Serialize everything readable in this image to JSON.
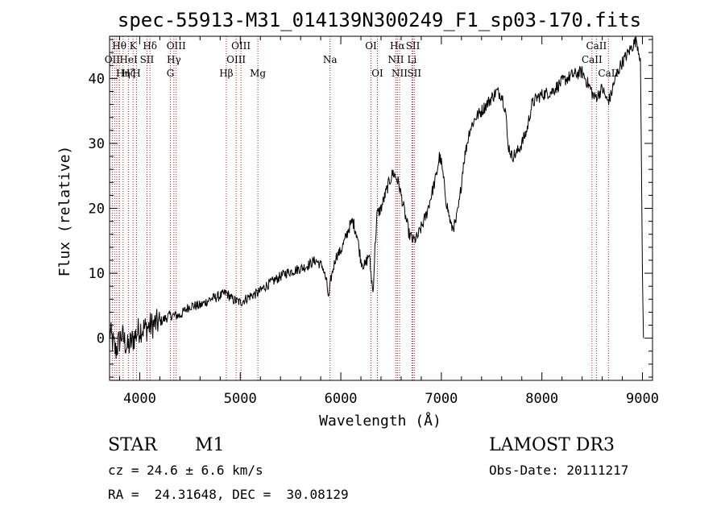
{
  "chart_data": {
    "type": "line",
    "title": "spec-55913-M31_014139N300249_F1_sp03-170.fits",
    "xlabel": "Wavelength (Å)",
    "ylabel": "Flux (relative)",
    "xlim": [
      3700,
      9100
    ],
    "ylim": [
      -6.5,
      46.5
    ],
    "x_ticks": [
      4000,
      5000,
      6000,
      7000,
      8000,
      9000
    ],
    "y_ticks": [
      0,
      10,
      20,
      30,
      40
    ],
    "series": [
      {
        "name": "flux",
        "x": [
          3700,
          3760,
          3820,
          3880,
          3940,
          4000,
          4060,
          4120,
          4200,
          4300,
          4400,
          4500,
          4600,
          4700,
          4800,
          4860,
          4920,
          5000,
          5100,
          5180,
          5250,
          5350,
          5450,
          5550,
          5650,
          5750,
          5820,
          5860,
          5880,
          5900,
          5950,
          6000,
          6040,
          6080,
          6120,
          6160,
          6200,
          6240,
          6280,
          6300,
          6320,
          6340,
          6360,
          6400,
          6440,
          6480,
          6520,
          6560,
          6580,
          6600,
          6640,
          6680,
          6720,
          6760,
          6800,
          6850,
          6900,
          6950,
          6980,
          7000,
          7050,
          7100,
          7140,
          7180,
          7220,
          7280,
          7340,
          7400,
          7450,
          7500,
          7550,
          7600,
          7640,
          7660,
          7700,
          7750,
          7800,
          7850,
          7900,
          7950,
          8000,
          8100,
          8200,
          8300,
          8400,
          8480,
          8520,
          8560,
          8600,
          8650,
          8680,
          8720,
          8780,
          8840,
          8900,
          8940,
          8980,
          9000,
          9010
        ],
        "values": [
          1.0,
          -2.0,
          0.5,
          -1.5,
          0.0,
          1.5,
          1.5,
          2.0,
          2.5,
          3.5,
          3.5,
          5.0,
          5.0,
          6.0,
          6.5,
          7.0,
          6.0,
          5.5,
          6.5,
          7.0,
          8.0,
          9.0,
          10.0,
          10.5,
          11.0,
          12.0,
          11.0,
          8.5,
          6.0,
          9.0,
          12.5,
          13.5,
          15.0,
          17.0,
          18.0,
          16.0,
          12.0,
          11.0,
          13.0,
          10.0,
          7.0,
          14.0,
          19.0,
          20.0,
          22.0,
          24.0,
          25.5,
          24.5,
          23.5,
          22.0,
          19.0,
          16.0,
          15.0,
          15.5,
          17.0,
          19.0,
          22.0,
          25.0,
          28.0,
          27.0,
          21.0,
          17.0,
          17.5,
          21.0,
          27.0,
          32.0,
          34.0,
          35.0,
          36.0,
          37.0,
          38.0,
          37.5,
          35.0,
          30.0,
          28.0,
          28.5,
          30.0,
          32.0,
          36.0,
          37.0,
          37.5,
          38.0,
          39.5,
          40.5,
          41.0,
          38.5,
          37.0,
          37.5,
          38.5,
          36.5,
          37.0,
          39.5,
          42.0,
          43.5,
          45.0,
          46.0,
          43.0,
          10.0,
          0.0
        ]
      }
    ],
    "line_markers": [
      {
        "label": "Hθ",
        "wavelength": 3797,
        "row": 0
      },
      {
        "label": "OII",
        "wavelength": 3727,
        "row": 1
      },
      {
        "label": "Hη",
        "wavelength": 3835,
        "row": 2
      },
      {
        "label": "K",
        "wavelength": 3934,
        "row": 0
      },
      {
        "label": "HeI",
        "wavelength": 3889,
        "row": 1
      },
      {
        "label": "Hζ",
        "wavelength": 3889,
        "row": 2
      },
      {
        "label": "SII",
        "wavelength": 4072,
        "row": 1
      },
      {
        "label": "H",
        "wavelength": 3968,
        "row": 2
      },
      {
        "label": "Hδ",
        "wavelength": 4102,
        "row": 0
      },
      {
        "label": "OIII",
        "wavelength": 4363,
        "row": 0
      },
      {
        "label": "Hγ",
        "wavelength": 4340,
        "row": 1
      },
      {
        "label": "G",
        "wavelength": 4305,
        "row": 2
      },
      {
        "label": "Hβ",
        "wavelength": 4861,
        "row": 2
      },
      {
        "label": "OIII",
        "wavelength": 5007,
        "row": 0
      },
      {
        "label": "OIII",
        "wavelength": 4959,
        "row": 1
      },
      {
        "label": "Mg",
        "wavelength": 5175,
        "row": 2
      },
      {
        "label": "Na",
        "wavelength": 5893,
        "row": 1
      },
      {
        "label": "OI",
        "wavelength": 6300,
        "row": 0
      },
      {
        "label": "OI",
        "wavelength": 6364,
        "row": 2
      },
      {
        "label": "Hα",
        "wavelength": 6563,
        "row": 0
      },
      {
        "label": "NII",
        "wavelength": 6548,
        "row": 1
      },
      {
        "label": "NII",
        "wavelength": 6584,
        "row": 2
      },
      {
        "label": "SII",
        "wavelength": 6717,
        "row": 0
      },
      {
        "label": "Li",
        "wavelength": 6708,
        "row": 1
      },
      {
        "label": "SII",
        "wavelength": 6731,
        "row": 2
      },
      {
        "label": "CaII",
        "wavelength": 8542,
        "row": 0
      },
      {
        "label": "CaII",
        "wavelength": 8498,
        "row": 1
      },
      {
        "label": "CaII",
        "wavelength": 8662,
        "row": 2
      }
    ],
    "extra_marker_lines": [
      3750,
      3771,
      3798,
      3835,
      3889,
      3934,
      3968,
      4102,
      4305,
      4340,
      4363,
      4861,
      4959,
      5007,
      5175,
      5893,
      6300,
      6364,
      6548,
      6563,
      6584,
      6708,
      6717,
      6731,
      8498,
      8542,
      8662
    ]
  },
  "info": {
    "object_class": "STAR",
    "subclass": "M1",
    "survey": "LAMOST DR3",
    "redshift": "cz = 24.6 ± 6.6 km/s",
    "obs_date": "Obs-Date: 20111217",
    "coords": "RA =  24.31648, DEC =  30.08129"
  },
  "colors": {
    "spectrum": "#000000",
    "marker_line": "#b22222",
    "axis": "#000000"
  }
}
